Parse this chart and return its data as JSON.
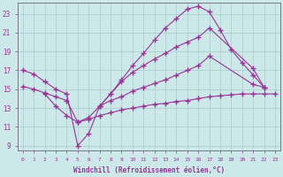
{
  "background_color": "#cce8e8",
  "grid_color": "#aacccc",
  "line_color": "#993399",
  "xlabel": "Windchill (Refroidissement éolien,°C)",
  "xlim": [
    -0.5,
    23.5
  ],
  "ylim": [
    8.5,
    24.2
  ],
  "yticks": [
    9,
    11,
    13,
    15,
    17,
    19,
    21,
    23
  ],
  "curve_a_x": [
    7,
    8,
    9,
    10,
    11,
    12,
    13,
    14,
    15,
    16,
    17,
    18,
    19,
    20,
    21,
    22
  ],
  "curve_a_y": [
    13.2,
    14.5,
    16.0,
    17.5,
    18.8,
    20.2,
    21.5,
    22.5,
    23.5,
    23.8,
    23.2,
    21.3,
    19.2,
    17.8,
    16.5,
    15.2
  ],
  "curve_b_x": [
    0,
    1,
    2,
    3,
    4,
    5,
    6,
    7,
    8,
    9,
    10,
    11,
    12,
    13,
    14,
    15,
    16,
    17,
    21,
    22
  ],
  "curve_b_y": [
    17.0,
    16.6,
    15.8,
    15.0,
    14.5,
    9.0,
    10.3,
    13.2,
    14.5,
    15.8,
    16.8,
    17.5,
    18.2,
    18.8,
    19.5,
    20.0,
    20.5,
    21.5,
    17.2,
    15.2
  ],
  "curve_c_x": [
    0,
    1,
    2,
    3,
    4,
    5,
    6,
    7,
    8,
    9,
    10,
    11,
    12,
    13,
    14,
    15,
    16,
    17,
    21,
    22
  ],
  "curve_c_y": [
    15.3,
    15.0,
    14.6,
    14.2,
    13.8,
    11.5,
    12.0,
    13.2,
    13.8,
    14.2,
    14.8,
    15.2,
    15.6,
    16.0,
    16.5,
    17.0,
    17.5,
    18.5,
    15.5,
    15.2
  ],
  "curve_d_x": [
    2,
    3,
    4,
    5,
    6,
    7,
    8,
    9,
    10,
    11,
    12,
    13,
    14,
    15,
    16,
    17,
    18,
    19,
    20,
    21,
    22,
    23
  ],
  "curve_d_y": [
    14.5,
    13.2,
    12.2,
    11.5,
    11.8,
    12.2,
    12.5,
    12.8,
    13.0,
    13.2,
    13.4,
    13.5,
    13.7,
    13.8,
    14.0,
    14.2,
    14.3,
    14.4,
    14.5,
    14.5,
    14.5,
    14.5
  ]
}
